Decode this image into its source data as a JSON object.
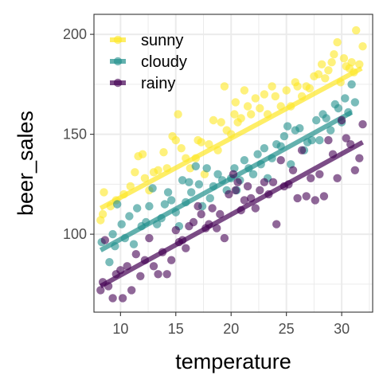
{
  "chart_data": {
    "type": "scatter",
    "xlabel": "temperature",
    "ylabel": "beer_sales",
    "xlim": [
      7.6,
      32.8
    ],
    "ylim": [
      61,
      210
    ],
    "x_ticks": [
      10,
      15,
      20,
      25,
      30
    ],
    "y_ticks": [
      100,
      150,
      200
    ],
    "x_tick_labels": [
      "10",
      "15",
      "20",
      "25",
      "30"
    ],
    "y_tick_labels": [
      "100",
      "150",
      "200"
    ],
    "grid": true,
    "legend_position": "top-left",
    "series": [
      {
        "name": "sunny",
        "color": "#FDE725",
        "points": [
          [
            8.2,
            107
          ],
          [
            8.4,
            110
          ],
          [
            8.5,
            121
          ],
          [
            9.1,
            114
          ],
          [
            9.6,
            117
          ],
          [
            10.3,
            120
          ],
          [
            10.9,
            124
          ],
          [
            11.3,
            131
          ],
          [
            11.6,
            139
          ],
          [
            12.0,
            140
          ],
          [
            12.2,
            128
          ],
          [
            12.6,
            122
          ],
          [
            13.0,
            131
          ],
          [
            13.4,
            132
          ],
          [
            13.9,
            141
          ],
          [
            14.2,
            133
          ],
          [
            14.7,
            149
          ],
          [
            15.0,
            147
          ],
          [
            15.2,
            160
          ],
          [
            15.5,
            143
          ],
          [
            15.9,
            138
          ],
          [
            16.3,
            133
          ],
          [
            16.8,
            138
          ],
          [
            17.0,
            147
          ],
          [
            17.3,
            146
          ],
          [
            17.6,
            130
          ],
          [
            18.0,
            145
          ],
          [
            18.4,
            157
          ],
          [
            18.8,
            142
          ],
          [
            19.1,
            156
          ],
          [
            19.4,
            174
          ],
          [
            19.6,
            152
          ],
          [
            20.0,
            150
          ],
          [
            20.3,
            160
          ],
          [
            20.4,
            166
          ],
          [
            20.6,
            156
          ],
          [
            20.9,
            158
          ],
          [
            21.2,
            172
          ],
          [
            21.5,
            164
          ],
          [
            21.8,
            160
          ],
          [
            22.2,
            168
          ],
          [
            22.6,
            163
          ],
          [
            23.0,
            170
          ],
          [
            23.3,
            160
          ],
          [
            23.7,
            174
          ],
          [
            24.0,
            169
          ],
          [
            24.5,
            164
          ],
          [
            25.0,
            172
          ],
          [
            25.4,
            164
          ],
          [
            25.8,
            176
          ],
          [
            26.0,
            174
          ],
          [
            26.4,
            169
          ],
          [
            26.8,
            174
          ],
          [
            27.1,
            173
          ],
          [
            27.5,
            179
          ],
          [
            27.9,
            180
          ],
          [
            28.2,
            185
          ],
          [
            28.5,
            178
          ],
          [
            28.8,
            182
          ],
          [
            29.1,
            186
          ],
          [
            29.3,
            190
          ],
          [
            29.6,
            196
          ],
          [
            29.9,
            176
          ],
          [
            30.2,
            188
          ],
          [
            30.4,
            184
          ],
          [
            30.7,
            183
          ],
          [
            30.9,
            186
          ],
          [
            31.1,
            181
          ],
          [
            31.3,
            202
          ],
          [
            31.6,
            185
          ],
          [
            31.9,
            194
          ]
        ]
      },
      {
        "name": "cloudy",
        "color": "#21908C",
        "points": [
          [
            8.3,
            96
          ],
          [
            9.0,
            86
          ],
          [
            9.3,
            100
          ],
          [
            9.5,
            94
          ],
          [
            9.7,
            115
          ],
          [
            10.1,
            105
          ],
          [
            10.4,
            98
          ],
          [
            10.8,
            109
          ],
          [
            11.2,
            95
          ],
          [
            11.5,
            113
          ],
          [
            11.9,
            104
          ],
          [
            12.3,
            106
          ],
          [
            12.6,
            114
          ],
          [
            12.9,
            123
          ],
          [
            13.3,
            105
          ],
          [
            13.7,
            108
          ],
          [
            14.0,
            115
          ],
          [
            14.3,
            121
          ],
          [
            14.6,
            117
          ],
          [
            15.0,
            111
          ],
          [
            15.3,
            104
          ],
          [
            15.6,
            127
          ],
          [
            15.9,
            116
          ],
          [
            16.2,
            126
          ],
          [
            16.4,
            121
          ],
          [
            16.8,
            134
          ],
          [
            17.1,
            125
          ],
          [
            17.4,
            114
          ],
          [
            17.8,
            133
          ],
          [
            18.1,
            118
          ],
          [
            18.4,
            124
          ],
          [
            18.8,
            130
          ],
          [
            19.2,
            127
          ],
          [
            19.6,
            122
          ],
          [
            20.0,
            128
          ],
          [
            20.3,
            133
          ],
          [
            20.5,
            122
          ],
          [
            20.8,
            127
          ],
          [
            21.2,
            137
          ],
          [
            21.6,
            133
          ],
          [
            22.0,
            130
          ],
          [
            22.4,
            140
          ],
          [
            22.7,
            135
          ],
          [
            23.0,
            143
          ],
          [
            23.3,
            128
          ],
          [
            23.7,
            138
          ],
          [
            24.1,
            145
          ],
          [
            24.5,
            144
          ],
          [
            24.8,
            149
          ],
          [
            25.1,
            154
          ],
          [
            25.4,
            135
          ],
          [
            25.8,
            152
          ],
          [
            26.2,
            153
          ],
          [
            26.6,
            142
          ],
          [
            26.9,
            146
          ],
          [
            27.3,
            147
          ],
          [
            27.7,
            157
          ],
          [
            28.0,
            147
          ],
          [
            28.3,
            160
          ],
          [
            28.6,
            158
          ],
          [
            29.0,
            152
          ],
          [
            29.4,
            165
          ],
          [
            29.7,
            163
          ],
          [
            30.0,
            156
          ],
          [
            30.3,
            168
          ],
          [
            30.6,
            161
          ],
          [
            30.9,
            175
          ],
          [
            31.2,
            166
          ]
        ]
      },
      {
        "name": "rainy",
        "color": "#440154",
        "points": [
          [
            8.2,
            72
          ],
          [
            8.4,
            76
          ],
          [
            8.6,
            97
          ],
          [
            8.9,
            74
          ],
          [
            9.3,
            68
          ],
          [
            9.6,
            80
          ],
          [
            10.0,
            82
          ],
          [
            10.2,
            68
          ],
          [
            10.6,
            84
          ],
          [
            11.0,
            72
          ],
          [
            11.4,
            90
          ],
          [
            11.8,
            79
          ],
          [
            12.2,
            87
          ],
          [
            12.6,
            98
          ],
          [
            13.0,
            84
          ],
          [
            13.4,
            80
          ],
          [
            13.8,
            91
          ],
          [
            14.2,
            80
          ],
          [
            14.6,
            87
          ],
          [
            15.0,
            102
          ],
          [
            15.3,
            96
          ],
          [
            15.6,
            97
          ],
          [
            15.9,
            93
          ],
          [
            16.2,
            104
          ],
          [
            16.6,
            106
          ],
          [
            17.0,
            114
          ],
          [
            17.3,
            110
          ],
          [
            17.7,
            103
          ],
          [
            18.0,
            105
          ],
          [
            18.3,
            113
          ],
          [
            18.7,
            103
          ],
          [
            19.0,
            110
          ],
          [
            19.4,
            98
          ],
          [
            19.8,
            120
          ],
          [
            20.2,
            130
          ],
          [
            20.4,
            122
          ],
          [
            20.6,
            126
          ],
          [
            20.9,
            112
          ],
          [
            21.2,
            117
          ],
          [
            21.5,
            124
          ],
          [
            21.8,
            118
          ],
          [
            22.2,
            113
          ],
          [
            22.6,
            122
          ],
          [
            23.0,
            126
          ],
          [
            23.4,
            120
          ],
          [
            23.8,
            126
          ],
          [
            24.1,
            105
          ],
          [
            24.5,
            137
          ],
          [
            24.8,
            124
          ],
          [
            25.2,
            125
          ],
          [
            25.6,
            132
          ],
          [
            26.0,
            118
          ],
          [
            26.4,
            142
          ],
          [
            26.8,
            119
          ],
          [
            27.2,
            128
          ],
          [
            27.6,
            117
          ],
          [
            28.0,
            130
          ],
          [
            28.4,
            119
          ],
          [
            28.8,
            147
          ],
          [
            29.2,
            140
          ],
          [
            29.6,
            128
          ],
          [
            30.0,
            157
          ],
          [
            30.4,
            148
          ],
          [
            30.8,
            145
          ],
          [
            31.2,
            132
          ],
          [
            31.6,
            138
          ],
          [
            31.9,
            155
          ]
        ]
      }
    ],
    "fit_lines": [
      {
        "name": "sunny",
        "color": "#FDE725",
        "x": [
          8.2,
          31.8
        ],
        "y": [
          113,
          183
        ]
      },
      {
        "name": "cloudy",
        "color": "#21908C",
        "x": [
          8.2,
          30.9
        ],
        "y": [
          92,
          161
        ]
      },
      {
        "name": "rainy",
        "color": "#440154",
        "x": [
          8.2,
          31.9
        ],
        "y": [
          74,
          146
        ]
      }
    ]
  }
}
